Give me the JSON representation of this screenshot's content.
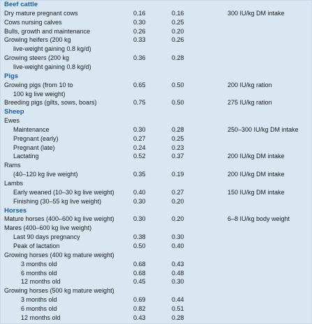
{
  "rows": [
    {
      "type": "section",
      "label": "Beef cattle"
    },
    {
      "type": "row",
      "label": "Dry mature pregnant cows",
      "v1": "0.16",
      "v2": "0.16",
      "note": "300 IU/kg DM intake"
    },
    {
      "type": "row",
      "label": "Cows nursing calves",
      "v1": "0.30",
      "v2": "0.25",
      "note": ""
    },
    {
      "type": "row",
      "label": "Bulls, growth and maintenance",
      "v1": "0.26",
      "v2": "0.20",
      "note": ""
    },
    {
      "type": "row",
      "label": "Growing heifers (200 kg",
      "v1": "0.33",
      "v2": "0.26",
      "note": ""
    },
    {
      "type": "cont",
      "label": "live-weight gaining 0.8 kg/d)"
    },
    {
      "type": "row",
      "label": "Growing steers (200 kg",
      "v1": "0.36",
      "v2": "0.28",
      "note": ""
    },
    {
      "type": "cont",
      "label": "live-weight gaining 0.8 kg/d)"
    },
    {
      "type": "section",
      "label": "Pigs"
    },
    {
      "type": "row",
      "label": "Growing pigs (from 10 to",
      "v1": "0.65",
      "v2": "0.50",
      "note": "200 IU/kg ration"
    },
    {
      "type": "cont",
      "label": "100 kg live weight)"
    },
    {
      "type": "row",
      "label": "Breeding pigs (gilts, sows, boars)",
      "v1": "0.75",
      "v2": "0.50",
      "note": "275 IU/kg ration"
    },
    {
      "type": "section",
      "label": "Sheep"
    },
    {
      "type": "row",
      "label": "Ewes",
      "v1": "",
      "v2": "",
      "note": ""
    },
    {
      "type": "sub",
      "label": "Maintenance",
      "v1": "0.30",
      "v2": "0.28",
      "note": "250–300 IU/kg DM intake"
    },
    {
      "type": "sub",
      "label": "Pregnant (early)",
      "v1": "0.27",
      "v2": "0.25",
      "note": ""
    },
    {
      "type": "sub",
      "label": "Pregnant (late)",
      "v1": "0.24",
      "v2": "0.23",
      "note": ""
    },
    {
      "type": "sub",
      "label": "Lactating",
      "v1": "0.52",
      "v2": "0.37",
      "note": "200 IU/kg DM intake"
    },
    {
      "type": "row",
      "label": "Rams",
      "v1": "",
      "v2": "",
      "note": ""
    },
    {
      "type": "sub",
      "label": "(40–120 kg live weight)",
      "v1": "0.35",
      "v2": "0.19",
      "note": "200 IU/kg DM intake"
    },
    {
      "type": "row",
      "label": "Lambs",
      "v1": "",
      "v2": "",
      "note": ""
    },
    {
      "type": "sub",
      "label": "Early weaned (10–30 kg live weight)",
      "v1": "0.40",
      "v2": "0.27",
      "note": "150 IU/kg DM intake"
    },
    {
      "type": "sub",
      "label": "Finishing (30–55 kg live weight)",
      "v1": "0.30",
      "v2": "0.20",
      "note": ""
    },
    {
      "type": "section",
      "label": "Horses"
    },
    {
      "type": "row",
      "label": "Mature horses (400–600 kg live weight)",
      "v1": "0.30",
      "v2": "0.20",
      "note": "6–8 IU/kg body weight"
    },
    {
      "type": "row",
      "label": "Mares (400–600 kg live weight)",
      "v1": "",
      "v2": "",
      "note": ""
    },
    {
      "type": "sub",
      "label": "Last 90 days pregnancy",
      "v1": "0.38",
      "v2": "0.30",
      "note": ""
    },
    {
      "type": "sub",
      "label": "Peak of lactation",
      "v1": "0.50",
      "v2": "0.40",
      "note": ""
    },
    {
      "type": "row",
      "label": "Growing horses (400 kg mature weight)",
      "v1": "",
      "v2": "",
      "note": ""
    },
    {
      "type": "sub2",
      "label": "3 months old",
      "v1": "0.68",
      "v2": "0.43",
      "note": ""
    },
    {
      "type": "sub2",
      "label": "6 months old",
      "v1": "0.68",
      "v2": "0.48",
      "note": ""
    },
    {
      "type": "sub2",
      "label": "12 months old",
      "v1": "0.45",
      "v2": "0.30",
      "note": ""
    },
    {
      "type": "row",
      "label": "Growing horses (500 kg mature weight)",
      "v1": "",
      "v2": "",
      "note": ""
    },
    {
      "type": "sub2",
      "label": "3 months old",
      "v1": "0.69",
      "v2": "0.44",
      "note": ""
    },
    {
      "type": "sub2",
      "label": "6 months old",
      "v1": "0.82",
      "v2": "0.51",
      "note": ""
    },
    {
      "type": "sub2",
      "label": "12 months old",
      "v1": "0.43",
      "v2": "0.28",
      "note": ""
    }
  ]
}
